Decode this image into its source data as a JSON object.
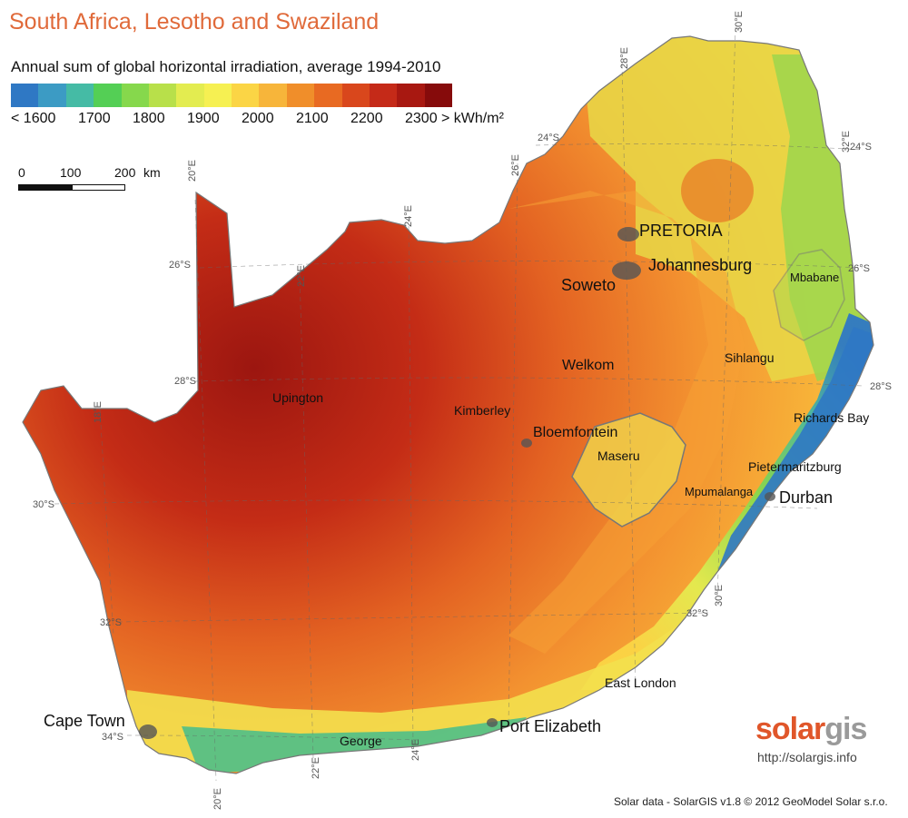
{
  "title": "South Africa, Lesotho and Swaziland",
  "subtitle": "Annual sum of global horizontal irradiation, average 1994-2010",
  "legend": {
    "colors": [
      "#2f78c4",
      "#3c9bc4",
      "#45bba5",
      "#54cf55",
      "#86d84c",
      "#b8e04a",
      "#e3ec50",
      "#f6f052",
      "#fbd545",
      "#f7b53a",
      "#f08e2a",
      "#e86a22",
      "#d9471c",
      "#c52a18",
      "#a81811",
      "#860b0b"
    ],
    "labels": [
      "< 1600",
      "1700",
      "1800",
      "1900",
      "2000",
      "2100",
      "2200",
      "2300",
      "> kWh/m²"
    ]
  },
  "scale": {
    "labels": [
      "0",
      "100",
      "200",
      "km"
    ]
  },
  "coords": [
    "30°E",
    "28°E",
    "26°E",
    "24°E",
    "22°E",
    "20°E",
    "18°E",
    "24°S",
    "26°S",
    "28°S",
    "30°S",
    "32°S",
    "34°S",
    "24°S",
    "26°S",
    "28°S",
    "32°S",
    "32°E",
    "30°E",
    "20°E",
    "22°E",
    "24°E"
  ],
  "cities": [
    "PRETORIA",
    "Johannesburg",
    "Soweto",
    "Mbabane",
    "Sihlangu",
    "Welkom",
    "Upington",
    "Kimberley",
    "Bloemfontein",
    "Maseru",
    "Richards Bay",
    "Pietermaritzburg",
    "Mpumalanga",
    "Durban",
    "East London",
    "Cape Town",
    "Port Elizabeth",
    "George"
  ],
  "logo": {
    "part1": "solar",
    "part2": "gis"
  },
  "url": "http://solargis.info",
  "credit": "Solar data - SolarGIS v1.8 © 2012 GeoModel Solar s.r.o."
}
